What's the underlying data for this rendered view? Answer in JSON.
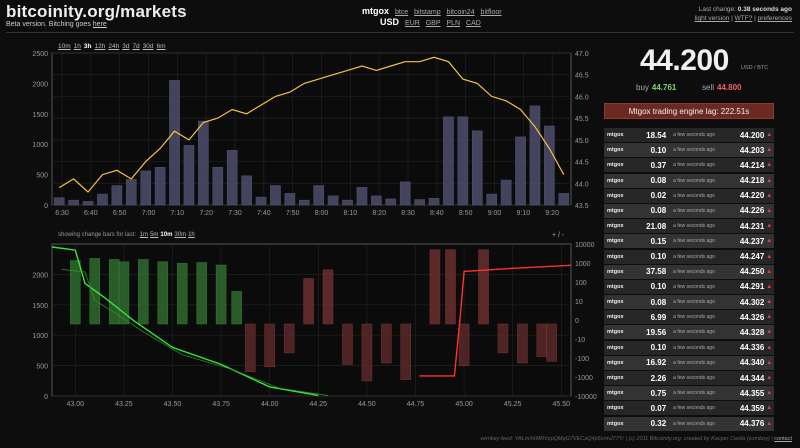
{
  "header": {
    "title": "bitcoinity.org/markets",
    "subtitle": "Beta version. Bitching goes",
    "subtitle_link": "here",
    "exchanges": {
      "selected": "mtgox",
      "others": [
        "btce",
        "bitstamp",
        "bitcoin24",
        "bitfloor"
      ]
    },
    "currencies": {
      "selected": "USD",
      "others": [
        "EUR",
        "GBP",
        "PLN",
        "CAD"
      ]
    },
    "last_change_label": "Last change:",
    "last_change_value": "0.38 seconds ago",
    "links": [
      "light version",
      "WTF?",
      "preferences"
    ]
  },
  "ranges": {
    "options": [
      "10m",
      "1h",
      "3h",
      "12h",
      "24h",
      "3d",
      "7d",
      "30d",
      "6m"
    ],
    "selected": "3h"
  },
  "change_bars": {
    "label": "showing change bars for last:",
    "options": [
      "1m",
      "5m",
      "10m",
      "30m",
      "1h"
    ],
    "selected": "10m",
    "zoom_label": "+ / -"
  },
  "ticker": {
    "price": "44.200",
    "unit": "USD / BTC",
    "buy_label": "buy",
    "buy": "44.761",
    "sell_label": "sell",
    "sell": "44.800",
    "lag": "Mtgox trading engine lag: 222.51s"
  },
  "trades": [
    {
      "exchange": "mtgox",
      "amount": "18.54",
      "ago": "a few seconds ago",
      "price": "44.200"
    },
    {
      "exchange": "mtgox",
      "amount": "0.10",
      "ago": "a few seconds ago",
      "price": "44.203"
    },
    {
      "exchange": "mtgox",
      "amount": "0.37",
      "ago": "a few seconds ago",
      "price": "44.214"
    },
    {
      "exchange": "mtgox",
      "amount": "0.08",
      "ago": "a few seconds ago",
      "price": "44.218"
    },
    {
      "exchange": "mtgox",
      "amount": "0.02",
      "ago": "a few seconds ago",
      "price": "44.220"
    },
    {
      "exchange": "mtgox",
      "amount": "0.08",
      "ago": "a few seconds ago",
      "price": "44.226"
    },
    {
      "exchange": "mtgox",
      "amount": "21.08",
      "ago": "a few seconds ago",
      "price": "44.231"
    },
    {
      "exchange": "mtgox",
      "amount": "0.15",
      "ago": "a few seconds ago",
      "price": "44.237"
    },
    {
      "exchange": "mtgox",
      "amount": "0.10",
      "ago": "a few seconds ago",
      "price": "44.247"
    },
    {
      "exchange": "mtgox",
      "amount": "37.58",
      "ago": "a few seconds ago",
      "price": "44.250"
    },
    {
      "exchange": "mtgox",
      "amount": "0.10",
      "ago": "a few seconds ago",
      "price": "44.291"
    },
    {
      "exchange": "mtgox",
      "amount": "0.08",
      "ago": "a few seconds ago",
      "price": "44.302"
    },
    {
      "exchange": "mtgox",
      "amount": "6.99",
      "ago": "a few seconds ago",
      "price": "44.326"
    },
    {
      "exchange": "mtgox",
      "amount": "19.56",
      "ago": "a few seconds ago",
      "price": "44.328"
    },
    {
      "exchange": "mtgox",
      "amount": "0.10",
      "ago": "a few seconds ago",
      "price": "44.336"
    },
    {
      "exchange": "mtgox",
      "amount": "16.92",
      "ago": "a few seconds ago",
      "price": "44.340"
    },
    {
      "exchange": "mtgox",
      "amount": "2.26",
      "ago": "a few seconds ago",
      "price": "44.344"
    },
    {
      "exchange": "mtgox",
      "amount": "0.75",
      "ago": "a few seconds ago",
      "price": "44.355"
    },
    {
      "exchange": "mtgox",
      "amount": "0.07",
      "ago": "a few seconds ago",
      "price": "44.359"
    },
    {
      "exchange": "mtgox",
      "amount": "0.32",
      "ago": "a few seconds ago",
      "price": "44.376"
    }
  ],
  "footer": {
    "text": "vernkey feed: YALmXkMRVcpQMqG7VECaQ4p5vrmJ77Y/ | (c) 2011 Bitcoinity.org, created by Kacper Cieśla (comboy) |",
    "contact": "contact"
  },
  "chart_data": [
    {
      "type": "line",
      "title": "",
      "x": [
        "6:30",
        "6:35",
        "6:40",
        "6:45",
        "6:50",
        "6:55",
        "7:00",
        "7:05",
        "7:10",
        "7:15",
        "7:20",
        "7:25",
        "7:30",
        "7:35",
        "7:40",
        "7:45",
        "7:50",
        "7:55",
        "8:00",
        "8:05",
        "8:10",
        "8:15",
        "8:20",
        "8:25",
        "8:30",
        "8:35",
        "8:40",
        "8:45",
        "8:50",
        "8:55",
        "9:00",
        "9:05",
        "9:10",
        "9:15",
        "9:20",
        "9:25"
      ],
      "series": [
        {
          "axis": "right",
          "color": "#f5c242",
          "values": [
            43.9,
            44.1,
            43.8,
            44.2,
            44.3,
            44.1,
            44.5,
            44.8,
            45.2,
            45.0,
            45.4,
            45.5,
            45.7,
            45.6,
            45.8,
            46.0,
            46.1,
            46.3,
            46.4,
            46.5,
            46.6,
            46.7,
            46.6,
            46.7,
            46.8,
            46.8,
            46.9,
            46.8,
            46.4,
            46.3,
            46.0,
            45.9,
            45.7,
            45.3,
            44.8,
            44.2
          ]
        },
        {
          "axis": "left",
          "type": "bar",
          "color": "#4a4a66",
          "values": [
            120,
            80,
            60,
            180,
            320,
            420,
            560,
            620,
            2050,
            980,
            1380,
            620,
            900,
            480,
            130,
            320,
            190,
            80,
            320,
            150,
            80,
            290,
            150,
            100,
            380,
            90,
            110,
            1450,
            1450,
            1220,
            180,
            410,
            1120,
            1630,
            1300,
            190
          ]
        }
      ],
      "x_ticks": [
        "6:30",
        "6:40",
        "6:50",
        "7:00",
        "7:10",
        "7:20",
        "7:30",
        "7:40",
        "7:50",
        "8:00",
        "8:10",
        "8:20",
        "8:30",
        "8:40",
        "8:50",
        "9:00",
        "9:10",
        "9:20"
      ],
      "ylim_left": [
        0,
        2500
      ],
      "yticks_left": [
        "0",
        "500",
        "1000",
        "1500",
        "2000",
        "2500"
      ],
      "ylim_right": [
        43.5,
        47.0
      ],
      "yticks_right": [
        "43.5",
        "44.0",
        "44.5",
        "45.0",
        "45.5",
        "46.0",
        "46.5",
        "47.0"
      ],
      "grid": true
    },
    {
      "type": "area",
      "title": "",
      "x_ticks": [
        "43.00",
        "43.25",
        "43.50",
        "43.75",
        "44.00",
        "44.25",
        "44.50",
        "44.75",
        "45.00",
        "45.25",
        "45.50"
      ],
      "xlim": [
        42.88,
        45.55
      ],
      "ylim_left": [
        0,
        2500
      ],
      "yticks_left": [
        "0",
        "500",
        "1000",
        "1500",
        "2000"
      ],
      "yticks_right": [
        "10000",
        "1000",
        "100",
        "10",
        "0",
        "-10",
        "-100",
        "-1000",
        "-10000"
      ],
      "bids_cum": [
        [
          42.88,
          2450
        ],
        [
          43.0,
          2400
        ],
        [
          43.05,
          1850
        ],
        [
          43.15,
          1620
        ],
        [
          43.3,
          1240
        ],
        [
          43.5,
          800
        ],
        [
          43.75,
          520
        ],
        [
          44.0,
          150
        ],
        [
          44.25,
          10
        ]
      ],
      "asks_cum": [
        [
          44.77,
          330
        ],
        [
          44.95,
          330
        ],
        [
          44.98,
          1300
        ],
        [
          45.0,
          2050
        ],
        [
          45.25,
          2100
        ],
        [
          45.55,
          2150
        ]
      ],
      "change_bars": [
        {
          "price": 43.0,
          "value": 800
        },
        {
          "price": 43.1,
          "value": 1000
        },
        {
          "price": 43.2,
          "value": 900
        },
        {
          "price": 43.25,
          "value": 700
        },
        {
          "price": 43.35,
          "value": 900
        },
        {
          "price": 43.45,
          "value": 700
        },
        {
          "price": 43.55,
          "value": 600
        },
        {
          "price": 43.65,
          "value": 650
        },
        {
          "price": 43.75,
          "value": 500
        },
        {
          "price": 43.83,
          "value": 30
        },
        {
          "price": 43.9,
          "value": -150
        },
        {
          "price": 44.0,
          "value": -90
        },
        {
          "price": 44.1,
          "value": -20
        },
        {
          "price": 44.2,
          "value": 120
        },
        {
          "price": 44.3,
          "value": 300
        },
        {
          "price": 44.4,
          "value": -70
        },
        {
          "price": 44.5,
          "value": -400
        },
        {
          "price": 44.6,
          "value": -60
        },
        {
          "price": 44.7,
          "value": -350
        },
        {
          "price": 44.85,
          "value": 2500
        },
        {
          "price": 44.93,
          "value": 2500
        },
        {
          "price": 45.0,
          "value": -80
        },
        {
          "price": 45.1,
          "value": 2500
        },
        {
          "price": 45.2,
          "value": -20
        },
        {
          "price": 45.3,
          "value": -60
        },
        {
          "price": 45.4,
          "value": -30
        },
        {
          "price": 45.45,
          "value": -50
        }
      ],
      "grid": true
    }
  ]
}
